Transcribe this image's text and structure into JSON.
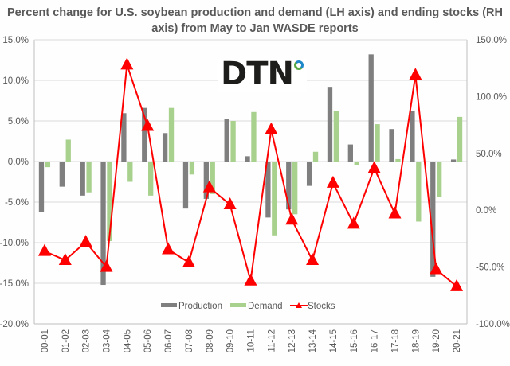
{
  "chart_data": {
    "type": "bar+line",
    "title": "Percent change for U.S. soybean production and demand (LH axis) and ending stocks (RH axis) from May to Jan WASDE reports",
    "categories": [
      "00-01",
      "01-02",
      "02-03",
      "03-04",
      "04-05",
      "05-06",
      "06-07",
      "07-08",
      "08-09",
      "09-10",
      "10-11",
      "11-12",
      "12-13",
      "13-14",
      "14-15",
      "15-16",
      "16-17",
      "17-18",
      "18-19",
      "19-20",
      "20-21"
    ],
    "series": [
      {
        "name": "Production",
        "type": "bar",
        "axis": "left",
        "color": "#7f7f7f",
        "values": [
          -6.2,
          -3.1,
          -4.2,
          -15.2,
          5.95,
          6.6,
          3.5,
          -5.8,
          -4.6,
          5.2,
          0.65,
          -6.9,
          -5.9,
          -3.0,
          9.2,
          2.1,
          13.2,
          4.0,
          6.2,
          -14.2,
          0.25
        ]
      },
      {
        "name": "Demand",
        "type": "bar",
        "axis": "left",
        "color": "#a9d18e",
        "values": [
          -0.7,
          2.7,
          -3.8,
          -9.8,
          -2.5,
          -4.2,
          6.6,
          -1.6,
          -4.0,
          5.0,
          6.1,
          -9.1,
          -6.5,
          1.2,
          6.2,
          -0.4,
          4.6,
          0.3,
          -7.4,
          -4.4,
          5.5
        ]
      },
      {
        "name": "Stocks",
        "type": "line",
        "axis": "right",
        "color": "#ff0000",
        "marker": "triangle",
        "values": [
          -36,
          -44,
          -28,
          -50,
          128,
          74,
          -34.5,
          -46,
          20,
          5,
          -62,
          71,
          -8.4,
          -44,
          24,
          -12,
          37,
          -3,
          119,
          -52,
          -67
        ]
      }
    ],
    "left_axis": {
      "min": -20,
      "max": 15,
      "step": 5,
      "tick_labels": [
        "15.0%",
        "10.0%",
        "5.0%",
        "0.0%",
        "-5.0%",
        "-10.0%",
        "-15.0%",
        "-20.0%"
      ]
    },
    "right_axis": {
      "min": -100,
      "max": 150,
      "step": 50,
      "tick_labels": [
        "150.0%",
        "100.0%",
        "50.0%",
        "0.0%",
        "-50.0%",
        "-100.0%"
      ]
    },
    "xlabel": "",
    "ylabel": "",
    "grid": true,
    "legend": {
      "position": "bottom-center",
      "entries": [
        "Production",
        "Demand",
        "Stocks"
      ]
    }
  },
  "logo": {
    "text": "DTN"
  }
}
